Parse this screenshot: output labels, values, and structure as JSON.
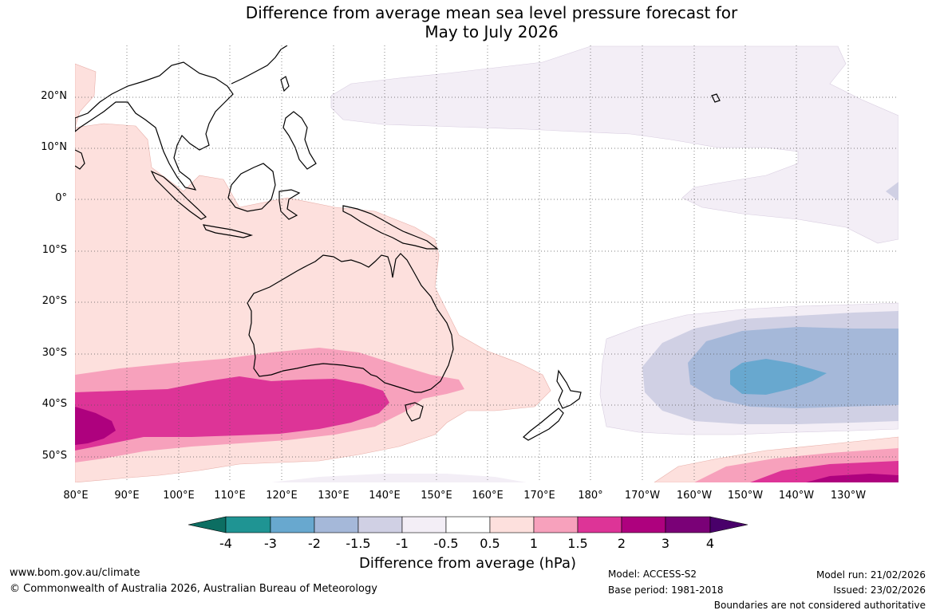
{
  "title_line1": "Difference from average mean sea level pressure forecast for",
  "title_line2": "May to July 2026",
  "lat_labels": [
    "20°N",
    "10°N",
    "0°",
    "10°S",
    "20°S",
    "30°S",
    "40°S",
    "50°S"
  ],
  "lon_labels": [
    "80°E",
    "90°E",
    "100°E",
    "110°E",
    "120°E",
    "130°E",
    "140°E",
    "150°E",
    "160°E",
    "170°E",
    "180°",
    "170°W",
    "160°W",
    "150°W",
    "140°W",
    "130°W"
  ],
  "colorbar": {
    "title": "Difference from average (hPa)",
    "ticks": [
      "-4",
      "-3",
      "-2",
      "-1.5",
      "-1",
      "-0.5",
      "0.5",
      "1",
      "1.5",
      "2",
      "3",
      "4"
    ],
    "colors": [
      "#0c6e62",
      "#1f9493",
      "#68a8cf",
      "#a5b8d9",
      "#d0d0e4",
      "#f3eef6",
      "#ffffff",
      "#fde0dd",
      "#f7a1bc",
      "#dd3497",
      "#ae017e",
      "#7a0177",
      "#49006a"
    ]
  },
  "footer": {
    "url": "www.bom.gov.au/climate",
    "copyright": "© Commonwealth of Australia 2026, Australian Bureau of Meteorology",
    "model": "Model: ACCESS-S2",
    "base_period": "Base period: 1981-2018",
    "model_run": "Model run: 21/02/2026",
    "issued": "Issued: 23/02/2026",
    "disclaimer": "Boundaries are not considered authoritative"
  }
}
